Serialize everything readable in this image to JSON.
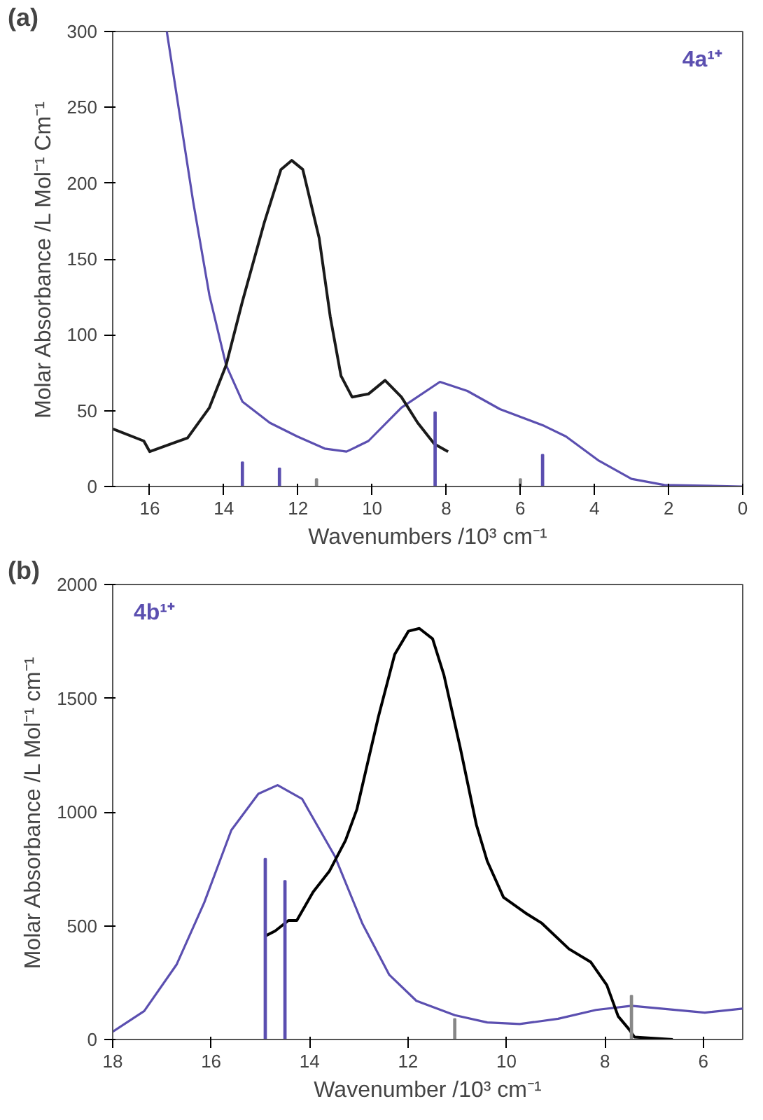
{
  "chart_data": [
    {
      "type": "line",
      "annotations": [
        "(a)"
      ],
      "xlabel": "Wavenumbers /10³ cm⁻¹",
      "ylabel": "Molar Absorbance /L Mol⁻¹ Cm⁻¹",
      "xlim": [
        17,
        0
      ],
      "ylim": [
        0,
        300
      ],
      "xticks": [
        16,
        14,
        12,
        10,
        8,
        6,
        4,
        2,
        0
      ],
      "yticks": [
        0,
        50,
        100,
        150,
        200,
        250,
        300
      ],
      "grid": false,
      "legend": "top right",
      "marker": "none",
      "line_style": "solid",
      "series": [
        {
          "name": "4a¹⁺",
          "color": "#5b4fb0",
          "x": [
            15.54,
            14.83,
            14.39,
            13.94,
            13.5,
            12.76,
            12.02,
            11.28,
            10.69,
            10.1,
            9.21,
            8.17,
            7.43,
            6.55,
            5.36,
            4.77,
            3.88,
            3.0,
            2.11,
            0
          ],
          "values": [
            300,
            188,
            126,
            80,
            56,
            42,
            33,
            25,
            23,
            30,
            52,
            69,
            63,
            51,
            40,
            33,
            17,
            5,
            1,
            0
          ]
        },
        {
          "color": "#1a1a1a",
          "x": [
            17,
            16.16,
            16.0,
            14.98,
            14.39,
            13.94,
            13.5,
            12.91,
            12.46,
            12.17,
            11.87,
            11.43,
            11.13,
            10.84,
            10.54,
            10.1,
            9.65,
            9.21,
            8.77,
            8.32,
            7.95
          ],
          "values": [
            38,
            30,
            23,
            32,
            52,
            80,
            122,
            174,
            209,
            215,
            209,
            164,
            112,
            73,
            59,
            61,
            70,
            59,
            42,
            28,
            23
          ]
        },
        {
          "type": "bar",
          "color": "#5b4fb0",
          "x": [
            13.5,
            12.5,
            8.3,
            5.4
          ],
          "values": [
            16,
            12,
            49,
            21
          ]
        },
        {
          "type": "bar",
          "color": "#888888",
          "x": [
            11.5,
            6.0
          ],
          "values": [
            5,
            5
          ]
        }
      ]
    },
    {
      "type": "line",
      "annotations": [
        "(b)"
      ],
      "xlabel": "Wavenumber /10³ cm⁻¹",
      "ylabel": "Molar Absorbance /L Mol⁻¹ cm⁻¹",
      "xlim": [
        18,
        5.2
      ],
      "ylim": [
        0,
        2000
      ],
      "xticks": [
        18,
        16,
        14,
        12,
        10,
        8,
        6
      ],
      "yticks": [
        0,
        500,
        1000,
        1500,
        2000
      ],
      "grid": false,
      "legend": "top left",
      "marker": "none",
      "line_style": "solid",
      "series": [
        {
          "name": "4b¹⁺",
          "color": "#5b4fb0",
          "x": [
            18,
            17.36,
            16.7,
            16.14,
            15.59,
            15.04,
            14.65,
            14.15,
            13.49,
            12.93,
            12.38,
            11.83,
            11.05,
            10.39,
            9.73,
            8.95,
            8.18,
            7.46,
            6.85,
            5.97,
            5.2
          ],
          "values": [
            34,
            125,
            330,
            602,
            920,
            1080,
            1118,
            1057,
            807,
            511,
            284,
            170,
            107,
            75,
            68,
            91,
            130,
            148,
            136,
            118,
            136
          ]
        },
        {
          "color": "#000000",
          "x": [
            14.9,
            14.7,
            14.43,
            14.26,
            13.93,
            13.6,
            13.27,
            13.04,
            12.82,
            12.6,
            12.27,
            11.99,
            11.77,
            11.5,
            11.27,
            10.94,
            10.61,
            10.39,
            10.06,
            9.62,
            9.28,
            8.73,
            8.29,
            7.96,
            7.73,
            7.51,
            7.4,
            6.62
          ],
          "values": [
            455,
            477,
            523,
            523,
            648,
            739,
            875,
            1011,
            1216,
            1420,
            1693,
            1795,
            1807,
            1761,
            1602,
            1284,
            943,
            784,
            625,
            557,
            511,
            398,
            341,
            239,
            102,
            45,
            11,
            0
          ]
        },
        {
          "type": "bar",
          "color": "#5b4fb0",
          "x": [
            14.9,
            14.5
          ],
          "values": [
            795,
            698
          ]
        },
        {
          "type": "bar",
          "color": "#888888",
          "x": [
            11.05,
            7.46
          ],
          "values": [
            91,
            193
          ]
        }
      ]
    }
  ]
}
